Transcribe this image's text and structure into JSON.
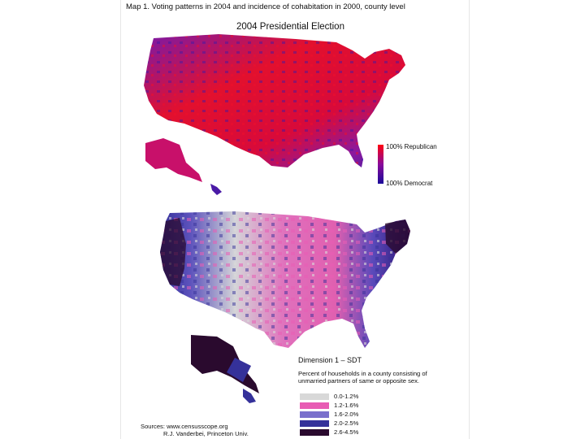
{
  "caption": "Map 1. Voting patterns in 2004 and incidence of cohabitation in 2000, county level",
  "election_map": {
    "title": "2004 Presidential Election",
    "legend_top": "100% Republican",
    "legend_bottom": "100% Democrat",
    "colors": {
      "republican": "#e8001c",
      "democrat": "#1a0aa0",
      "mixed": "#8a1aa8"
    }
  },
  "cohabitation_map": {
    "dimension_title": "Dimension 1 – SDT",
    "description": "Percent of households in a county consisting of unmarried partners of same or opposite sex.",
    "categories": [
      {
        "label": "0.0-1.2%",
        "color": "#d8d8d8"
      },
      {
        "label": "1.2-1.6%",
        "color": "#e85cb4"
      },
      {
        "label": "1.6-2.0%",
        "color": "#7a70cc"
      },
      {
        "label": "2.0-2.5%",
        "color": "#35319a"
      },
      {
        "label": "2.6-4.5%",
        "color": "#2a0a2e"
      }
    ]
  },
  "sources": {
    "line1": "Sources: www.censusscope.org",
    "line2": "R.J. Vanderbei, Princeton Univ."
  }
}
